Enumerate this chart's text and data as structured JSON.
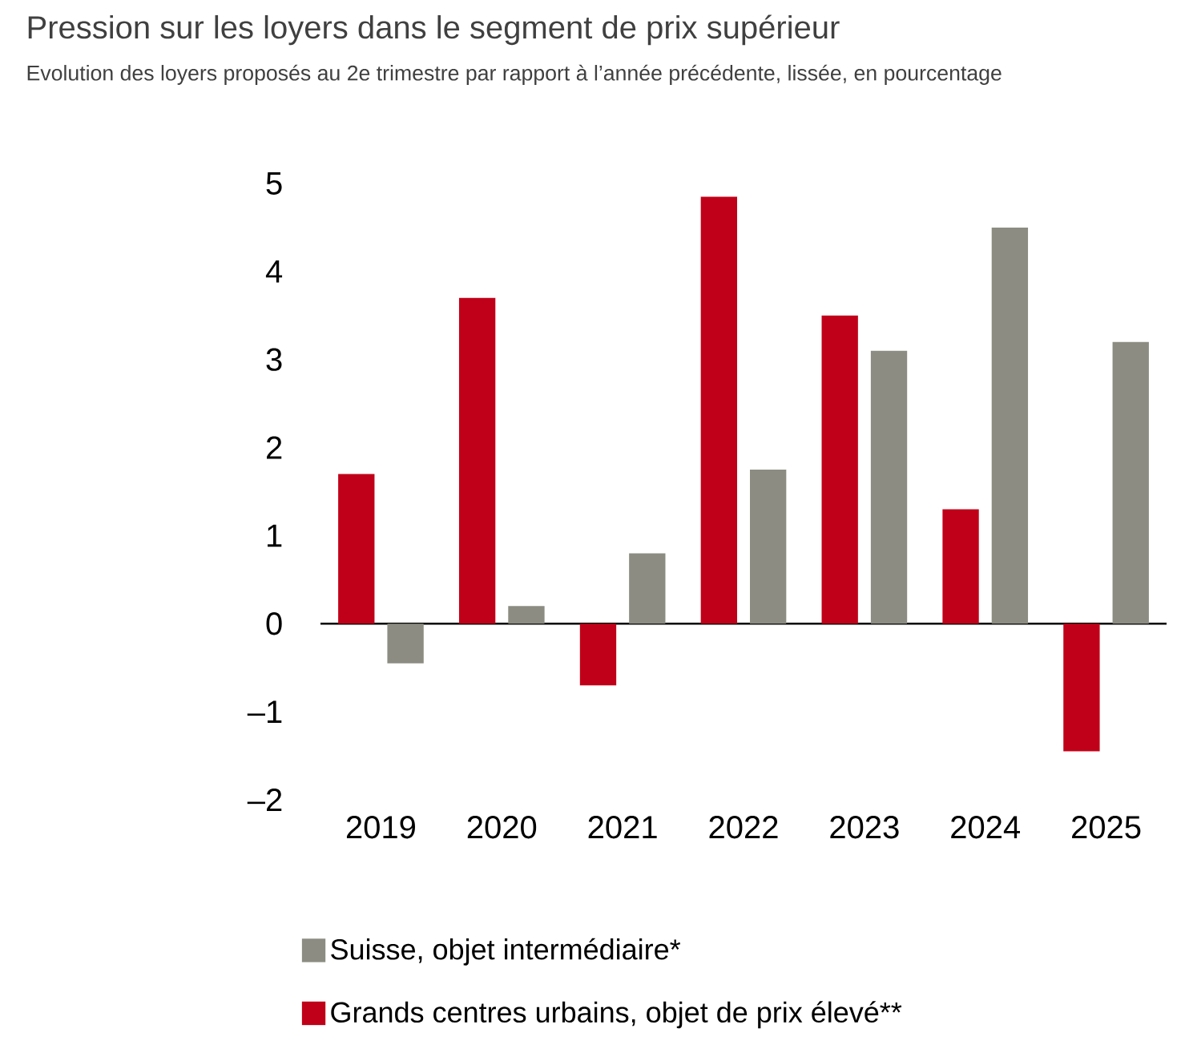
{
  "chart_data": {
    "type": "bar",
    "title": "Pression sur les loyers dans le segment de prix supérieur",
    "subtitle": "Evolution des loyers proposés au 2e trimestre par rapport à l’année précédente, lissée, en pourcentage",
    "categories": [
      "2019",
      "2020",
      "2021",
      "2022",
      "2023",
      "2024",
      "2025"
    ],
    "series": [
      {
        "name": "Grands centres urbains, objet de prix élevé**",
        "color": "#c00018",
        "values": [
          1.7,
          3.7,
          -0.7,
          4.85,
          3.5,
          1.3,
          -1.45
        ]
      },
      {
        "name": "Suisse, objet intermédiaire*",
        "color": "#8c8c82",
        "values": [
          -0.45,
          0.2,
          0.8,
          1.75,
          3.1,
          4.5,
          3.2
        ]
      }
    ],
    "ylim": [
      -2,
      5
    ],
    "yticks": [
      {
        "value": -2,
        "label": "–2"
      },
      {
        "value": -1,
        "label": "–1"
      },
      0,
      1,
      2,
      3,
      4,
      5
    ],
    "legend": "bottom"
  }
}
